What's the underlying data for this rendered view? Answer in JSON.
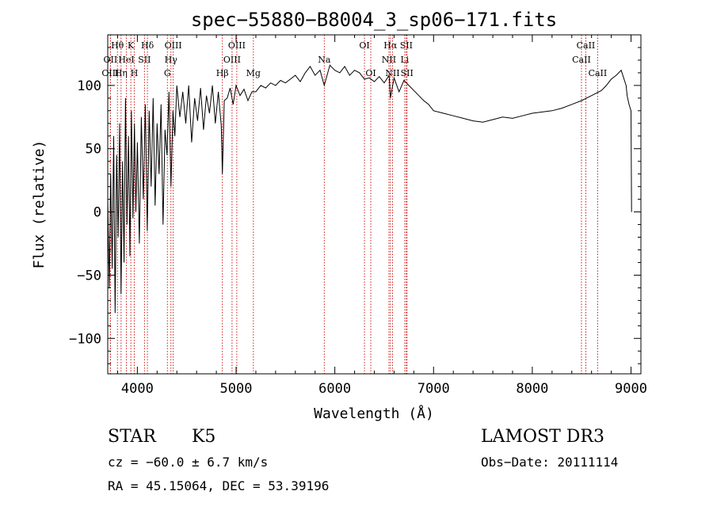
{
  "chart_data": {
    "type": "line",
    "title": "spec−55880−B8004_3_sp06−171.fits",
    "xlabel": "Wavelength (Å)",
    "ylabel": "Flux (relative)",
    "xlim": [
      3700,
      9100
    ],
    "ylim": [
      -128,
      140
    ],
    "xticks": [
      4000,
      5000,
      6000,
      7000,
      8000,
      9000
    ],
    "xtick_labels": [
      "4000",
      "5000",
      "6000",
      "7000",
      "8000",
      "9000"
    ],
    "yticks": [
      -100,
      -50,
      0,
      50,
      100
    ],
    "ytick_labels": [
      "−100",
      "−50",
      "0",
      "50",
      "100"
    ],
    "series": [
      {
        "name": "flux",
        "x": [
          3700,
          3715,
          3730,
          3745,
          3760,
          3775,
          3790,
          3805,
          3820,
          3835,
          3850,
          3865,
          3880,
          3895,
          3910,
          3925,
          3940,
          3955,
          3970,
          3985,
          4000,
          4020,
          4040,
          4060,
          4080,
          4100,
          4120,
          4140,
          4160,
          4180,
          4200,
          4220,
          4240,
          4260,
          4280,
          4300,
          4320,
          4340,
          4360,
          4380,
          4400,
          4430,
          4460,
          4490,
          4520,
          4550,
          4580,
          4610,
          4640,
          4670,
          4700,
          4730,
          4760,
          4790,
          4820,
          4850,
          4861,
          4880,
          4910,
          4940,
          4970,
          5000,
          5040,
          5080,
          5120,
          5160,
          5200,
          5250,
          5300,
          5350,
          5400,
          5450,
          5500,
          5550,
          5600,
          5650,
          5700,
          5750,
          5800,
          5850,
          5893,
          5950,
          6000,
          6050,
          6100,
          6150,
          6200,
          6250,
          6300,
          6350,
          6400,
          6450,
          6500,
          6550,
          6563,
          6600,
          6650,
          6700,
          6750,
          6800,
          6850,
          6900,
          6950,
          7000,
          7100,
          7200,
          7300,
          7400,
          7500,
          7600,
          7700,
          7800,
          7900,
          8000,
          8100,
          8200,
          8300,
          8400,
          8500,
          8600,
          8700,
          8750,
          8800,
          8850,
          8900,
          8950,
          8960,
          8980,
          9000,
          9005
        ],
        "y": [
          10,
          -60,
          30,
          -45,
          60,
          -80,
          45,
          -20,
          70,
          -65,
          40,
          -40,
          90,
          -10,
          60,
          -35,
          80,
          -5,
          70,
          0,
          55,
          -25,
          75,
          10,
          85,
          -15,
          80,
          20,
          90,
          5,
          70,
          30,
          85,
          -10,
          65,
          45,
          95,
          20,
          80,
          60,
          100,
          75,
          95,
          70,
          100,
          55,
          90,
          72,
          98,
          65,
          92,
          78,
          100,
          70,
          95,
          68,
          30,
          88,
          90,
          98,
          85,
          100,
          92,
          97,
          88,
          95,
          95,
          100,
          98,
          102,
          100,
          104,
          102,
          105,
          108,
          103,
          110,
          115,
          108,
          112,
          100,
          116,
          112,
          110,
          115,
          108,
          112,
          110,
          105,
          106,
          103,
          107,
          102,
          108,
          90,
          106,
          95,
          104,
          100,
          96,
          92,
          88,
          85,
          80,
          78,
          76,
          74,
          72,
          71,
          73,
          75,
          74,
          76,
          78,
          79,
          80,
          82,
          85,
          88,
          92,
          96,
          100,
          105,
          108,
          112,
          100,
          92,
          85,
          80,
          0
        ]
      }
    ],
    "line_markers": [
      {
        "label": "Hθ",
        "x": 3798,
        "row": 1
      },
      {
        "label": "OII",
        "x": 3727,
        "row": 2
      },
      {
        "label": "OIII",
        "x": 3727,
        "row": 3
      },
      {
        "label": "K",
        "x": 3934,
        "row": 1
      },
      {
        "label": "HeI",
        "x": 3889,
        "row": 2
      },
      {
        "label": "Hη",
        "x": 3835,
        "row": 3
      },
      {
        "label": "SII",
        "x": 4072,
        "row": 2
      },
      {
        "label": "H",
        "x": 3969,
        "row": 3
      },
      {
        "label": "Hδ",
        "x": 4102,
        "row": 1
      },
      {
        "label": "OIII",
        "x": 4363,
        "row": 1
      },
      {
        "label": "Hγ",
        "x": 4340,
        "row": 2
      },
      {
        "label": "G",
        "x": 4304,
        "row": 3
      },
      {
        "label": "OIII",
        "x": 5007,
        "row": 1
      },
      {
        "label": "OIII",
        "x": 4959,
        "row": 2
      },
      {
        "label": "Hβ",
        "x": 4861,
        "row": 3
      },
      {
        "label": "Mg",
        "x": 5175,
        "row": 3
      },
      {
        "label": "Na",
        "x": 5893,
        "row": 2
      },
      {
        "label": "OI",
        "x": 6300,
        "row": 1
      },
      {
        "label": "OI",
        "x": 6364,
        "row": 3
      },
      {
        "label": "Hα",
        "x": 6563,
        "row": 1
      },
      {
        "label": "SII",
        "x": 6724,
        "row": 1
      },
      {
        "label": "NII",
        "x": 6548,
        "row": 2
      },
      {
        "label": "Li",
        "x": 6708,
        "row": 2
      },
      {
        "label": "NII",
        "x": 6584,
        "row": 3
      },
      {
        "label": "SII",
        "x": 6731,
        "row": 3
      },
      {
        "label": "CaII",
        "x": 8542,
        "row": 1
      },
      {
        "label": "CaII",
        "x": 8498,
        "row": 2
      },
      {
        "label": "CaII",
        "x": 8662,
        "row": 3
      }
    ]
  },
  "info": {
    "class": "STAR",
    "subclass": "K5",
    "survey": "LAMOST DR3",
    "cz": "cz = −60.0 ± 6.7 km/s",
    "obs_date": "Obs−Date: 20111114",
    "coords": "RA =  45.15064, DEC =  53.39196"
  },
  "colors": {
    "axes": "#000000",
    "marker": "#cc0000"
  }
}
